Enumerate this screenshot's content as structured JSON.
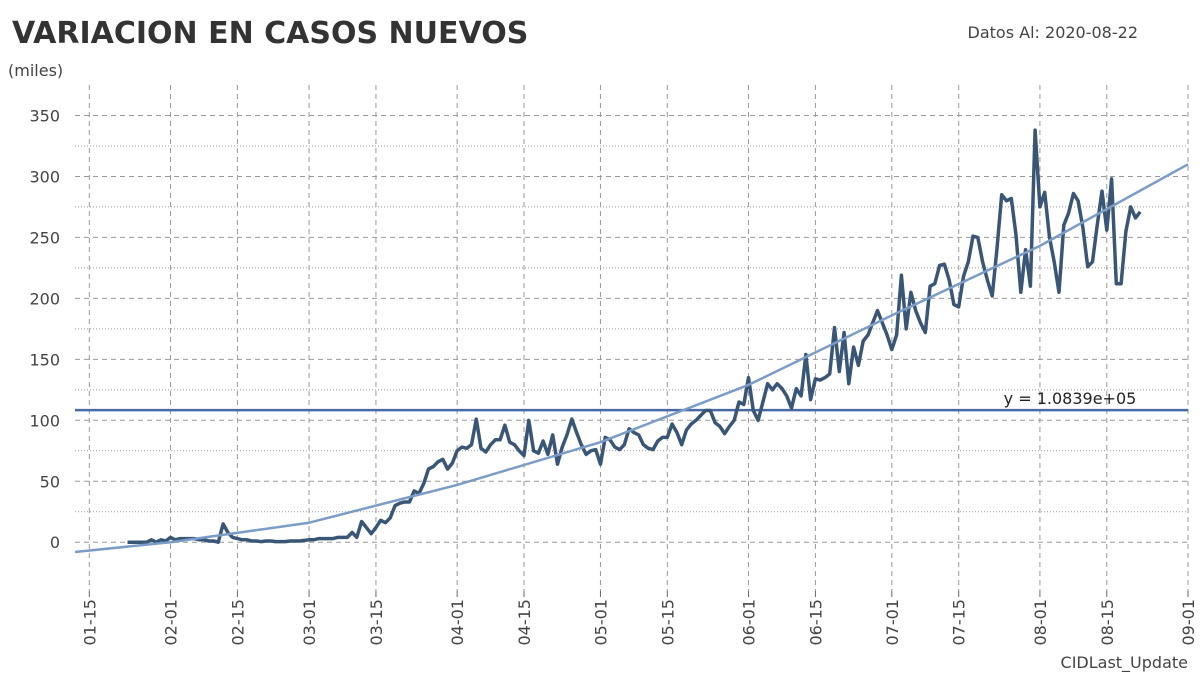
{
  "chart_data": {
    "type": "line",
    "title": "VARIACION EN CASOS NUEVOS",
    "subtitle": "Datos Al: 2020-08-22",
    "y_label": "(miles)",
    "footer": "CIDLast_Update",
    "xlim": [
      "01-12",
      "09-01"
    ],
    "xticks": [
      "01-15",
      "02-01",
      "02-15",
      "03-01",
      "03-15",
      "04-01",
      "04-15",
      "05-01",
      "05-15",
      "06-01",
      "06-15",
      "07-01",
      "07-15",
      "08-01",
      "08-15",
      "09-01"
    ],
    "ylim": [
      -40,
      375
    ],
    "yticks": [
      0,
      50,
      100,
      150,
      200,
      250,
      300,
      350
    ],
    "grid": true,
    "hline": {
      "value": 108.39,
      "label": "y = 1.0839e+05",
      "color": "#4a6aa5"
    },
    "series": [
      {
        "color": "#3a5676",
        "x": [
          "01-23",
          "01-24",
          "01-25",
          "01-26",
          "01-27",
          "01-28",
          "01-29",
          "01-30",
          "01-31",
          "02-01",
          "02-02",
          "02-03",
          "02-04",
          "02-05",
          "02-06",
          "02-07",
          "02-08",
          "02-09",
          "02-10",
          "02-11",
          "02-12",
          "02-13",
          "02-14",
          "02-15",
          "02-16",
          "02-17",
          "02-18",
          "02-19",
          "02-20",
          "02-21",
          "02-22",
          "02-23",
          "02-24",
          "02-25",
          "02-26",
          "02-27",
          "02-28",
          "02-29",
          "03-01",
          "03-02",
          "03-03",
          "03-04",
          "03-05",
          "03-06",
          "03-07",
          "03-08",
          "03-09",
          "03-10",
          "03-11",
          "03-12",
          "03-13",
          "03-14",
          "03-15",
          "03-16",
          "03-17",
          "03-18",
          "03-19",
          "03-20",
          "03-21",
          "03-22",
          "03-23",
          "03-24",
          "03-25",
          "03-26",
          "03-27",
          "03-28",
          "03-29",
          "03-30",
          "03-31",
          "04-01",
          "04-02",
          "04-03",
          "04-04",
          "04-05",
          "04-06",
          "04-07",
          "04-08",
          "04-09",
          "04-10",
          "04-11",
          "04-12",
          "04-13",
          "04-14",
          "04-15",
          "04-16",
          "04-17",
          "04-18",
          "04-19",
          "04-20",
          "04-21",
          "04-22",
          "04-23",
          "04-24",
          "04-25",
          "04-26",
          "04-27",
          "04-28",
          "04-29",
          "04-30",
          "05-01",
          "05-02",
          "05-03",
          "05-04",
          "05-05",
          "05-06",
          "05-07",
          "05-08",
          "05-09",
          "05-10",
          "05-11",
          "05-12",
          "05-13",
          "05-14",
          "05-15",
          "05-16",
          "05-17",
          "05-18",
          "05-19",
          "05-20",
          "05-21",
          "05-22",
          "05-23",
          "05-24",
          "05-25",
          "05-26",
          "05-27",
          "05-28",
          "05-29",
          "05-30",
          "05-31",
          "06-01",
          "06-02",
          "06-03",
          "06-04",
          "06-05",
          "06-06",
          "06-07",
          "06-08",
          "06-09",
          "06-10",
          "06-11",
          "06-12",
          "06-13",
          "06-14",
          "06-15",
          "06-16",
          "06-17",
          "06-18",
          "06-19",
          "06-20",
          "06-21",
          "06-22",
          "06-23",
          "06-24",
          "06-25",
          "06-26",
          "06-27",
          "06-28",
          "06-29",
          "06-30",
          "07-01",
          "07-02",
          "07-03",
          "07-04",
          "07-05",
          "07-06",
          "07-07",
          "07-08",
          "07-09",
          "07-10",
          "07-11",
          "07-12",
          "07-13",
          "07-14",
          "07-15",
          "07-16",
          "07-17",
          "07-18",
          "07-19",
          "07-20",
          "07-21",
          "07-22",
          "07-23",
          "07-24",
          "07-25",
          "07-26",
          "07-27",
          "07-28",
          "07-29",
          "07-30",
          "07-31",
          "08-01",
          "08-02",
          "08-03",
          "08-04",
          "08-05",
          "08-06",
          "08-07",
          "08-08",
          "08-09",
          "08-10",
          "08-11",
          "08-12",
          "08-13",
          "08-14",
          "08-15",
          "08-16",
          "08-17",
          "08-18",
          "08-19",
          "08-20",
          "08-21",
          "08-22"
        ],
        "values": [
          0,
          0,
          0,
          0,
          0,
          2,
          0,
          2,
          1,
          4,
          2,
          3,
          3,
          3,
          3,
          2,
          2,
          1,
          1,
          0,
          15,
          8,
          4,
          3,
          2,
          2,
          1,
          1,
          0.5,
          1,
          1,
          0.5,
          0.5,
          0.5,
          1,
          1,
          1,
          1.5,
          2,
          2,
          3,
          3,
          3,
          3,
          4,
          4,
          4,
          8,
          4,
          17,
          12,
          7,
          12,
          18,
          16,
          20,
          30,
          32,
          33,
          33,
          42,
          40,
          48,
          60,
          62,
          66,
          68,
          60,
          65,
          75,
          78,
          77,
          80,
          101,
          77,
          74,
          80,
          84,
          84,
          96,
          82,
          80,
          75,
          71,
          100,
          75,
          73,
          83,
          72,
          88,
          64,
          78,
          88,
          101,
          90,
          80,
          72,
          75,
          76,
          64,
          86,
          84,
          78,
          76,
          80,
          93,
          90,
          88,
          80,
          77,
          76,
          83,
          86,
          86,
          97,
          90,
          80,
          92,
          97,
          100,
          104,
          108,
          108,
          98,
          95,
          89,
          95,
          100,
          115,
          113,
          135,
          108,
          100,
          115,
          130,
          125,
          130,
          126,
          120,
          110,
          126,
          120,
          154,
          117,
          134,
          133,
          135,
          138,
          176,
          140,
          172,
          130,
          160,
          145,
          165,
          170,
          180,
          190,
          180,
          170,
          158,
          170,
          219,
          175,
          205,
          190,
          180,
          172,
          210,
          212,
          227,
          228,
          215,
          195,
          193,
          218,
          230,
          251,
          250,
          230,
          215,
          202,
          240,
          285,
          280,
          282,
          252,
          205,
          240,
          210,
          338,
          275,
          287,
          250,
          230,
          205,
          260,
          270,
          286,
          280,
          258,
          226,
          230,
          260,
          288,
          256,
          298,
          212,
          212,
          255,
          275,
          266,
          271
        ]
      },
      {
        "color": "#7a9cc6",
        "x": [
          "01-12",
          "02-01",
          "03-01",
          "04-01",
          "05-01",
          "06-01",
          "07-01",
          "08-01",
          "09-01"
        ],
        "values": [
          -8,
          0,
          16,
          47,
          82,
          129,
          186,
          243,
          310
        ]
      }
    ]
  }
}
